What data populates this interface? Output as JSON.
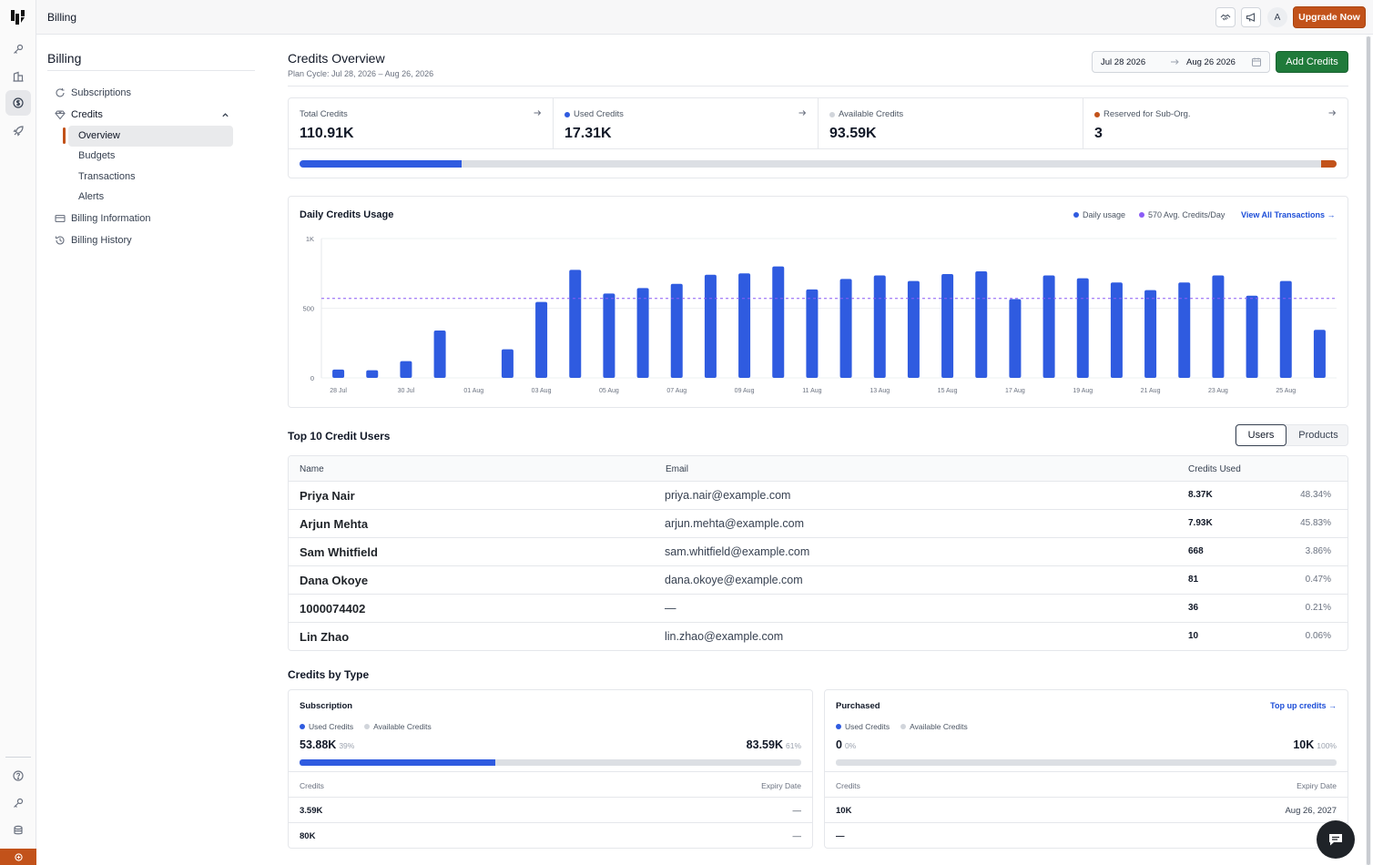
{
  "topbar": {
    "title": "Billing",
    "upgrade_label": "Upgrade Now",
    "avatar_initial": "A"
  },
  "nav": {
    "title": "Billing",
    "items": [
      {
        "label": "Subscriptions"
      },
      {
        "label": "Credits"
      },
      {
        "label": "Billing Information"
      },
      {
        "label": "Billing History"
      }
    ],
    "credits_sub": [
      "Overview",
      "Budgets",
      "Transactions",
      "Alerts"
    ]
  },
  "header": {
    "title": "Credits Overview",
    "subtitle": "Plan Cycle: Jul 28, 2026 – Aug 26, 2026",
    "date_from": "Jul 28 2026",
    "date_to": "Aug 26 2026",
    "add_credits_label": "Add Credits"
  },
  "stats": [
    {
      "label": "Total Credits",
      "value": "110.91K",
      "dot": ""
    },
    {
      "label": "Used Credits",
      "value": "17.31K",
      "dot": "#2f5be0"
    },
    {
      "label": "Available Credits",
      "value": "93.59K",
      "dot": "#d1d5db"
    },
    {
      "label": "Reserved for Sub-Org.",
      "value": "3",
      "dot": "#c2521a"
    }
  ],
  "usage_bar": {
    "used_fraction": 0.156
  },
  "chart_data": {
    "type": "bar",
    "title": "Daily Credits Usage",
    "legend": [
      "Daily usage",
      "570 Avg. Credits/Day"
    ],
    "view_all_label": "View All Transactions →",
    "ylim": [
      0,
      1000
    ],
    "yticks": [
      "0",
      "500",
      "1K"
    ],
    "xtick_labels": [
      "28 Jul",
      "30 Jul",
      "01 Aug",
      "03 Aug",
      "05 Aug",
      "07 Aug",
      "09 Aug",
      "11 Aug",
      "13 Aug",
      "15 Aug",
      "17 Aug",
      "19 Aug",
      "21 Aug",
      "23 Aug",
      "25 Aug"
    ],
    "categories": [
      "28 Jul",
      "29 Jul",
      "30 Jul",
      "31 Jul",
      "01 Aug",
      "02 Aug",
      "03 Aug",
      "04 Aug",
      "05 Aug",
      "06 Aug",
      "07 Aug",
      "08 Aug",
      "09 Aug",
      "10 Aug",
      "11 Aug",
      "12 Aug",
      "13 Aug",
      "14 Aug",
      "15 Aug",
      "16 Aug",
      "17 Aug",
      "18 Aug",
      "19 Aug",
      "20 Aug",
      "21 Aug",
      "22 Aug",
      "23 Aug",
      "24 Aug",
      "25 Aug",
      "26 Aug"
    ],
    "values": [
      60,
      55,
      120,
      340,
      0,
      205,
      545,
      775,
      605,
      645,
      675,
      740,
      750,
      800,
      635,
      710,
      735,
      695,
      745,
      765,
      565,
      735,
      715,
      685,
      630,
      685,
      735,
      590,
      695,
      345
    ],
    "average": 570,
    "colors": {
      "bar": "#2f5be0",
      "avg": "#8b5cf6"
    }
  },
  "top_users": {
    "title": "Top 10 Credit Users",
    "toggle": [
      "Users",
      "Products"
    ],
    "columns": [
      "Name",
      "Email",
      "Credits Used"
    ],
    "rows": [
      {
        "name": "Priya Nair",
        "email": "priya.nair@example.com",
        "credits": "8.37K",
        "pct": "48.34%"
      },
      {
        "name": "Arjun Mehta",
        "email": "arjun.mehta@example.com",
        "credits": "7.93K",
        "pct": "45.83%"
      },
      {
        "name": "Sam Whitfield",
        "email": "sam.whitfield@example.com",
        "credits": "668",
        "pct": "3.86%"
      },
      {
        "name": "Dana Okoye",
        "email": "dana.okoye@example.com",
        "credits": "81",
        "pct": "0.47%"
      },
      {
        "name": "1000074402",
        "email": "—",
        "credits": "36",
        "pct": "0.21%"
      },
      {
        "name": "Lin Zhao",
        "email": "lin.zhao@example.com",
        "credits": "10",
        "pct": "0.06%"
      }
    ]
  },
  "credits_by_type": {
    "title": "Credits by Type",
    "cards": [
      {
        "title": "Subscription",
        "link": "",
        "legend_used": "Used Credits",
        "legend_avail": "Available Credits",
        "used": "53.88K",
        "used_pct": "39%",
        "avail": "83.59K",
        "avail_pct": "61%",
        "used_fraction": 0.39,
        "col_left": "Credits",
        "col_right": "Expiry Date",
        "rows": [
          {
            "credits": "3.59K",
            "expiry": "—"
          },
          {
            "credits": "80K",
            "expiry": "—"
          }
        ]
      },
      {
        "title": "Purchased",
        "link": "Top up credits →",
        "legend_used": "Used Credits",
        "legend_avail": "Available Credits",
        "used": "0",
        "used_pct": "0%",
        "avail": "10K",
        "avail_pct": "100%",
        "used_fraction": 0,
        "col_left": "Credits",
        "col_right": "Expiry Date",
        "rows": [
          {
            "credits": "10K",
            "expiry": "Aug 26, 2027"
          },
          {
            "credits": "—",
            "expiry": ""
          }
        ]
      }
    ]
  }
}
